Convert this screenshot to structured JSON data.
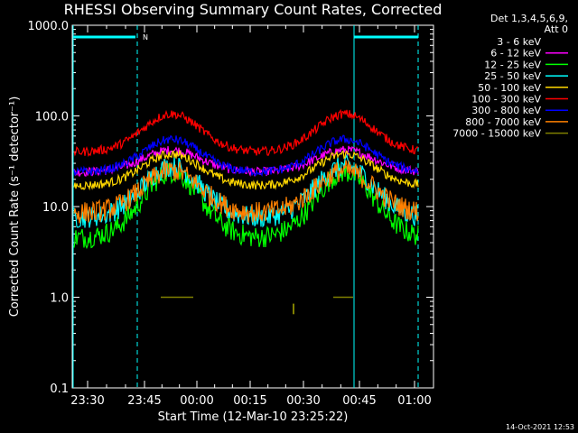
{
  "chart_data": {
    "type": "line",
    "title": "RHESSI Observing Summary Count Rates, Corrected",
    "xlabel": "Start Time (12-Mar-10 23:25:22)",
    "ylabel": "Corrected Count Rate (s⁻¹ detector⁻¹)",
    "yscale": "log",
    "ylim": [
      0.1,
      1000
    ],
    "y_ticks": [
      "1000.0",
      "100.0",
      "10.0",
      "1.0",
      "0.1"
    ],
    "x_ticks": [
      "23:30",
      "23:45",
      "00:00",
      "00:15",
      "00:30",
      "00:45",
      "01:00"
    ],
    "legend_header": [
      "Det 1,3,4,5,6,9,",
      "Att 0"
    ],
    "legend_position": "right",
    "footer_timestamp": "14-Oct-2021 12:53",
    "flag_label": "N",
    "series": [
      {
        "name": "3 - 6 keV",
        "color": "#000000",
        "base": 17,
        "peak": 36
      },
      {
        "name": "6 - 12 keV",
        "color": "#ff00ff",
        "base": 24,
        "peak": 42
      },
      {
        "name": "12 - 25 keV",
        "color": "#00ff00",
        "base": 4.5,
        "peak": 24
      },
      {
        "name": "25 - 50 keV",
        "color": "#00ffff",
        "base": 7.5,
        "peak": 28
      },
      {
        "name": "50 - 100 keV",
        "color": "#ffd700",
        "base": 17,
        "peak": 38
      },
      {
        "name": "100 - 300 keV",
        "color": "#ff0000",
        "base": 40,
        "peak": 105
      },
      {
        "name": "300 - 800 keV",
        "color": "#0000ff",
        "base": 24,
        "peak": 55
      },
      {
        "name": "800 - 7000 keV",
        "color": "#ff8000",
        "base": 8.5,
        "peak": 25
      },
      {
        "name": "7000 - 15000 keV",
        "color": "#808000",
        "base": 1.0,
        "peak": 1.0
      }
    ]
  }
}
